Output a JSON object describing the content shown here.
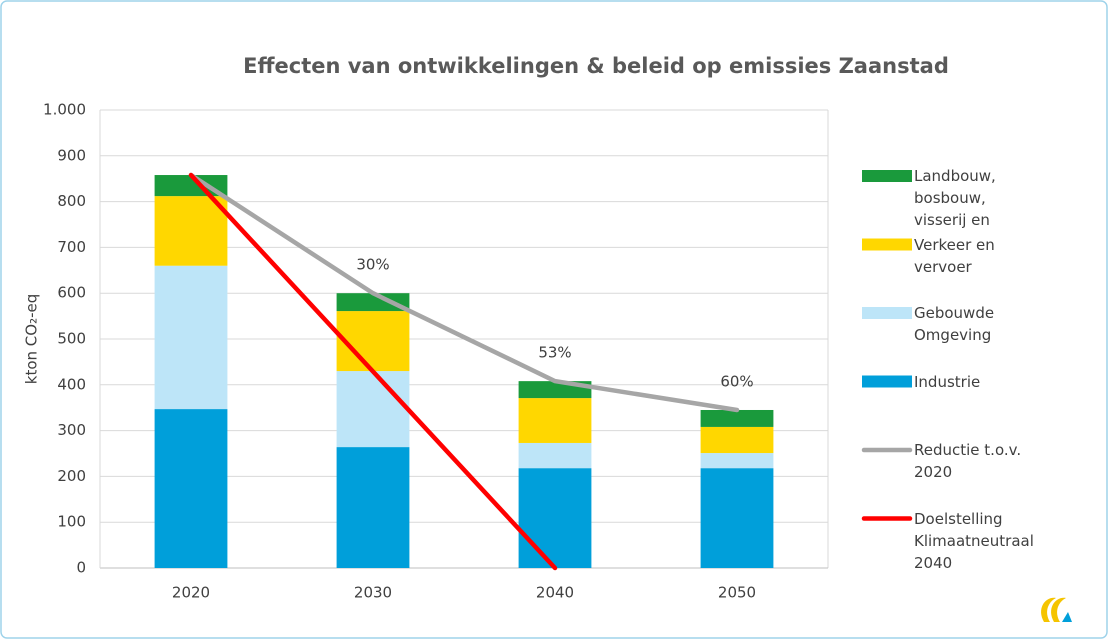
{
  "chart_data": {
    "type": "bar",
    "title": "Effecten van ontwikkelingen & beleid op emissies Zaanstad",
    "ylabel": "kton CO₂-eq",
    "categories": [
      "2020",
      "2030",
      "2040",
      "2050"
    ],
    "stacked": true,
    "ylim": [
      0,
      1000
    ],
    "yticks": [
      0,
      100,
      200,
      300,
      400,
      500,
      600,
      700,
      800,
      900,
      {
        "value": 1000,
        "label": "1.000"
      }
    ],
    "grid": true,
    "legend": "right",
    "series": [
      {
        "name": "Industrie",
        "color": "#009fda",
        "values": [
          347,
          264,
          218,
          218
        ]
      },
      {
        "name": "Gebouwde Omgeving",
        "color": "#bde5f8",
        "values": [
          313,
          166,
          55,
          33
        ]
      },
      {
        "name": "Verkeer en vervoer",
        "color": "#ffd700",
        "values": [
          152,
          131,
          98,
          57
        ]
      },
      {
        "name": "Landbouw, bosbouw, visserij en natuur",
        "color": "#1a9a3c",
        "values": [
          46,
          39,
          37,
          37
        ]
      },
      {
        "name": "Reductie t.o.v. 2020",
        "type": "line",
        "color": "#a6a6a6",
        "values": [
          858,
          600,
          408,
          345
        ],
        "value_labels": [
          null,
          "30%",
          "53%",
          "60%"
        ]
      },
      {
        "name": "Doelstelling Klimaatneutraal 2040",
        "type": "line",
        "color": "#ff0000",
        "values": [
          858,
          429,
          0,
          null
        ]
      }
    ]
  }
}
